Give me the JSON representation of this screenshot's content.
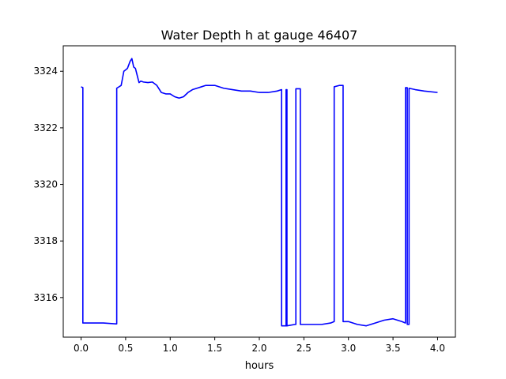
{
  "chart_data": {
    "type": "line",
    "title": "Water Depth h at gauge 46407",
    "xlabel": "hours",
    "ylabel": "",
    "xlim": [
      -0.2,
      4.2
    ],
    "ylim": [
      3314.6,
      3324.9
    ],
    "xticks": [
      0.0,
      0.5,
      1.0,
      1.5,
      2.0,
      2.5,
      3.0,
      3.5,
      4.0
    ],
    "xtick_labels": [
      "0.0",
      "0.5",
      "1.0",
      "1.5",
      "2.0",
      "2.5",
      "3.0",
      "3.5",
      "4.0"
    ],
    "yticks": [
      3316,
      3318,
      3320,
      3322,
      3324
    ],
    "ytick_labels": [
      "3316",
      "3318",
      "3320",
      "3322",
      "3324"
    ],
    "grid": false,
    "line_color": "#0000ff",
    "series": [
      {
        "x": [
          0.0,
          0.02,
          0.02,
          0.25,
          0.39,
          0.4,
          0.4,
          0.45,
          0.48,
          0.5,
          0.52,
          0.55,
          0.57,
          0.59,
          0.61,
          0.63,
          0.65,
          0.67,
          0.7,
          0.75,
          0.8,
          0.85,
          0.9,
          0.95,
          1.0,
          1.05,
          1.1,
          1.15,
          1.2,
          1.25,
          1.3,
          1.35,
          1.4,
          1.5,
          1.6,
          1.7,
          1.8,
          1.9,
          2.0,
          2.1,
          2.2,
          2.25,
          2.25,
          2.3,
          2.3,
          2.31,
          2.31,
          2.4,
          2.41,
          2.41,
          2.46,
          2.46,
          2.47,
          2.47,
          2.6,
          2.7,
          2.8,
          2.84,
          2.84,
          2.9,
          2.94,
          2.94,
          3.0,
          3.1,
          3.2,
          3.3,
          3.4,
          3.5,
          3.6,
          3.64,
          3.64,
          3.66,
          3.66,
          3.68,
          3.68,
          3.75,
          3.85,
          4.0
        ],
        "y": [
          3323.45,
          3323.42,
          3315.1,
          3315.1,
          3315.07,
          3315.07,
          3323.4,
          3323.5,
          3324.0,
          3324.05,
          3324.1,
          3324.35,
          3324.45,
          3324.15,
          3324.1,
          3323.85,
          3323.6,
          3323.65,
          3323.62,
          3323.6,
          3323.62,
          3323.5,
          3323.25,
          3323.2,
          3323.2,
          3323.1,
          3323.05,
          3323.1,
          3323.25,
          3323.35,
          3323.4,
          3323.45,
          3323.5,
          3323.5,
          3323.4,
          3323.35,
          3323.3,
          3323.3,
          3323.25,
          3323.25,
          3323.3,
          3323.35,
          3315.0,
          3315.0,
          3323.35,
          3323.35,
          3315.0,
          3315.05,
          3315.05,
          3323.38,
          3323.38,
          3315.05,
          3315.05,
          3315.05,
          3315.05,
          3315.05,
          3315.1,
          3315.15,
          3323.45,
          3323.5,
          3323.5,
          3315.15,
          3315.15,
          3315.05,
          3315.0,
          3315.1,
          3315.2,
          3315.25,
          3315.15,
          3315.1,
          3323.42,
          3323.42,
          3315.05,
          3315.05,
          3323.4,
          3323.35,
          3323.3,
          3323.25
        ]
      }
    ]
  }
}
